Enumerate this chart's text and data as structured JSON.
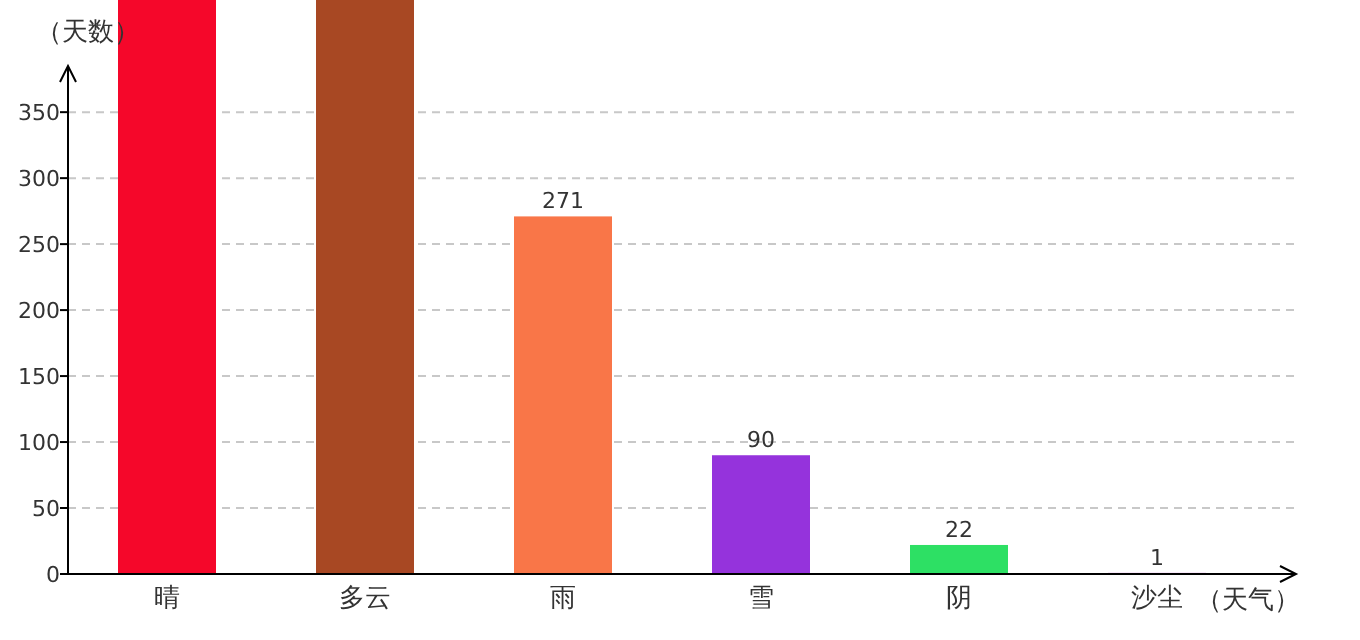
{
  "chart_data": {
    "type": "bar",
    "ylabel": "（天数）",
    "xlabel": "（天气）",
    "categories": [
      "晴",
      "多云",
      "雨",
      "雪",
      "阴",
      "沙尘"
    ],
    "values": [
      435,
      435,
      271,
      90,
      22,
      1
    ],
    "colors": [
      "#f5072a",
      "#a84823",
      "#f97648",
      "#9533dc",
      "#2de064",
      "#e9b8f0"
    ],
    "value_labels": [
      null,
      null,
      "271",
      "90",
      "22",
      "1"
    ],
    "ylim": [
      0,
      435
    ],
    "yticks": [
      0,
      50,
      100,
      150,
      200,
      250,
      300,
      350
    ],
    "grid": "y"
  }
}
